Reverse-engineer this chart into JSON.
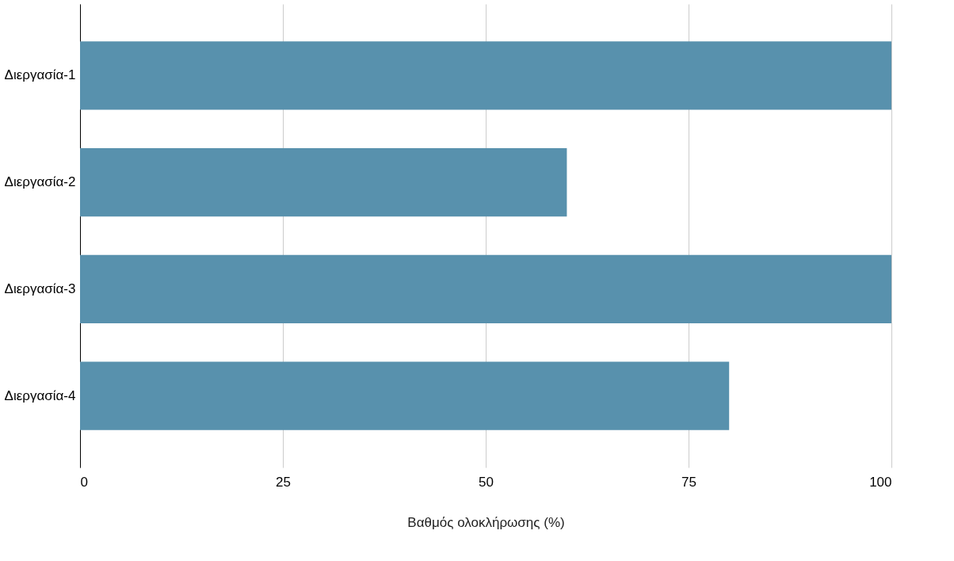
{
  "chart_data": {
    "type": "bar",
    "orientation": "horizontal",
    "xlabel": "Βαθμός ολοκλήρωσης (%)",
    "categories": [
      "Διεργασία-1",
      "Διεργασία-2",
      "Διεργασία-3",
      "Διεργασία-4"
    ],
    "values": [
      100,
      60,
      100,
      80
    ],
    "color": "#5891ad",
    "xlim": [
      0,
      100
    ],
    "xticks": [
      0,
      25,
      50,
      75,
      100
    ],
    "grid": "x"
  }
}
